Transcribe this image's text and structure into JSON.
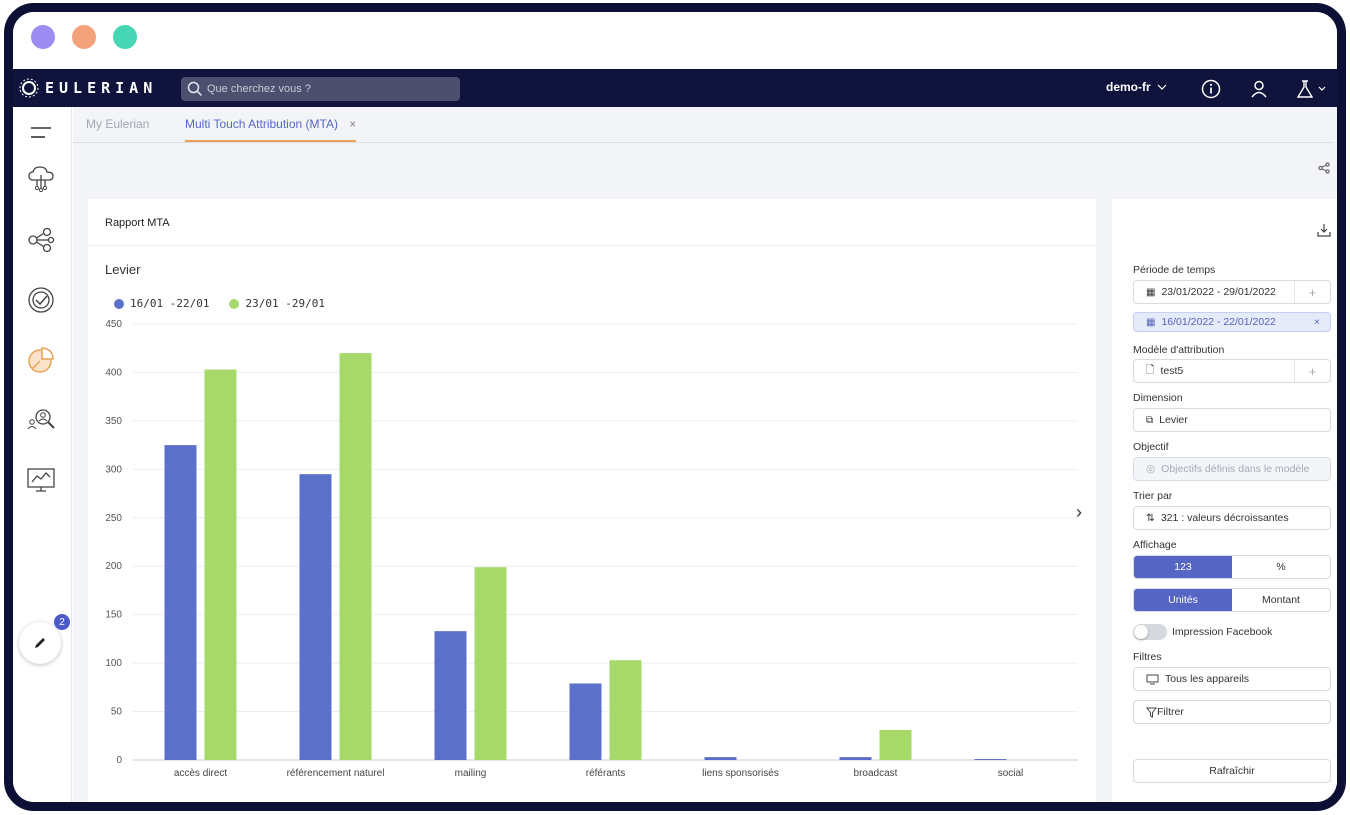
{
  "window": {
    "dots": [
      "#9d8cf3",
      "#f3a27c",
      "#46d6b4"
    ]
  },
  "topnav": {
    "brand": "EULERIAN",
    "search_placeholder": "Que cherchez vous ?",
    "user": "demo-fr",
    "icons": [
      "info-icon",
      "user-icon",
      "flask-icon"
    ]
  },
  "leftbar": {
    "icons": [
      "menu-icon",
      "cloud-network-icon",
      "share-nodes-icon",
      "target-check-icon",
      "pie-chart-icon",
      "search-people-icon",
      "monitor-chart-icon"
    ],
    "fab_badge": "2"
  },
  "tabs": [
    {
      "label": "My Eulerian",
      "active": false
    },
    {
      "label": "Multi Touch Attribution (MTA)",
      "active": true,
      "close": "×"
    }
  ],
  "report": {
    "title": "Rapport MTA"
  },
  "chart_data": {
    "type": "bar",
    "title": "Levier",
    "categories": [
      "accès direct",
      "référencement naturel",
      "mailing",
      "référants",
      "liens sponsorisés",
      "broadcast",
      "social"
    ],
    "series": [
      {
        "name": "16/01 -22/01",
        "color": "#5b70c9",
        "values": [
          325,
          295,
          133,
          79,
          3,
          3,
          1
        ]
      },
      {
        "name": "23/01 -29/01",
        "color": "#a6d96a",
        "values": [
          403,
          420,
          199,
          103,
          0,
          31,
          0
        ]
      }
    ],
    "ylim": [
      0,
      450
    ],
    "yticks": [
      0,
      50,
      100,
      150,
      200,
      250,
      300,
      350,
      400,
      450
    ],
    "grid": true,
    "legend": "top-left"
  },
  "panel": {
    "periode_label": "Période de temps",
    "periode_value": "23/01/2022 - 29/01/2022",
    "compare_value": "16/01/2022 - 22/01/2022",
    "modele_label": "Modèle d'attribution",
    "modele_value": "test5",
    "dimension_label": "Dimension",
    "dimension_value": "Levier",
    "objectif_label": "Objectif",
    "objectif_value": "Objectifs définis dans le modèle",
    "trier_label": "Trier par",
    "trier_value": "321 : valeurs décroissantes",
    "affichage_label": "Affichage",
    "aff1": [
      "123",
      "%"
    ],
    "aff2": [
      "Unités",
      "Montant"
    ],
    "impression_label": "Impression Facebook",
    "filtres_label": "Filtres",
    "filtre_appareils": "Tous les appareils",
    "filtrer": "Filtrer",
    "refresh": "Rafraîchir",
    "plus": "+",
    "close": "×"
  }
}
